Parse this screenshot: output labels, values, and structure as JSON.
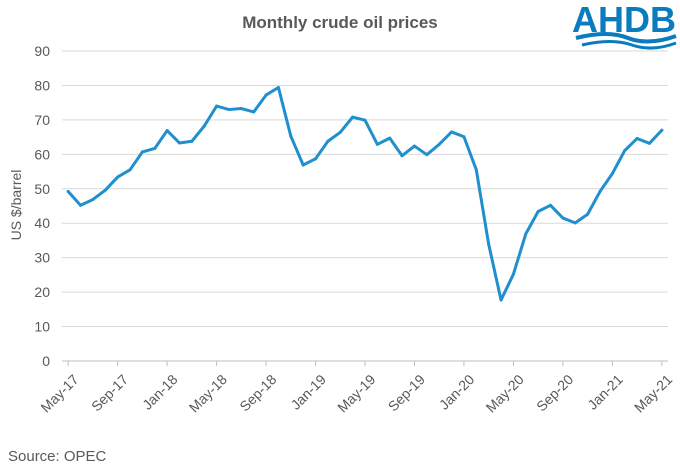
{
  "logo": {
    "text": "AHDB",
    "color": "#0a7bbf"
  },
  "source": "Source:  OPEC",
  "chart_data": {
    "type": "line",
    "title": "Monthly crude oil prices",
    "xlabel": "",
    "ylabel": "US $/barrel",
    "ylim": [
      0,
      90
    ],
    "yticks": [
      0,
      10,
      20,
      30,
      40,
      50,
      60,
      70,
      80,
      90
    ],
    "grid": true,
    "legend": "none",
    "line_color": "#1f8fcf",
    "x": [
      "May-17",
      "Jun-17",
      "Jul-17",
      "Aug-17",
      "Sep-17",
      "Oct-17",
      "Nov-17",
      "Dec-17",
      "Jan-18",
      "Feb-18",
      "Mar-18",
      "Apr-18",
      "May-18",
      "Jun-18",
      "Jul-18",
      "Aug-18",
      "Sep-18",
      "Oct-18",
      "Nov-18",
      "Dec-18",
      "Jan-19",
      "Feb-19",
      "Mar-19",
      "Apr-19",
      "May-19",
      "Jun-19",
      "Jul-19",
      "Aug-19",
      "Sep-19",
      "Oct-19",
      "Nov-19",
      "Dec-19",
      "Jan-20",
      "Feb-20",
      "Mar-20",
      "Apr-20",
      "May-20",
      "Jun-20",
      "Jul-20",
      "Aug-20",
      "Sep-20",
      "Oct-20",
      "Nov-20",
      "Dec-20",
      "Jan-21",
      "Feb-21",
      "Mar-21",
      "Apr-21",
      "May-21"
    ],
    "xtick_labels": [
      "May-17",
      "Sep-17",
      "Jan-18",
      "May-18",
      "Sep-18",
      "Jan-19",
      "May-19",
      "Sep-19",
      "Jan-20",
      "May-20",
      "Sep-20",
      "Jan-21",
      "May-21"
    ],
    "series": [
      {
        "values": [
          49.2,
          45.2,
          46.9,
          49.6,
          53.4,
          55.5,
          60.7,
          61.7,
          66.9,
          63.3,
          63.8,
          68.2,
          74.0,
          73.0,
          73.3,
          72.3,
          77.2,
          79.4,
          65.3,
          56.9,
          58.7,
          63.8,
          66.4,
          70.8,
          69.9,
          62.9,
          64.7,
          59.6,
          62.4,
          59.9,
          62.9,
          66.5,
          65.1,
          55.5,
          33.9,
          17.7,
          25.2,
          36.9,
          43.4,
          45.2,
          41.5,
          40.1,
          42.6,
          49.2,
          54.4,
          61.1,
          64.6,
          63.2,
          67.0
        ]
      }
    ]
  }
}
